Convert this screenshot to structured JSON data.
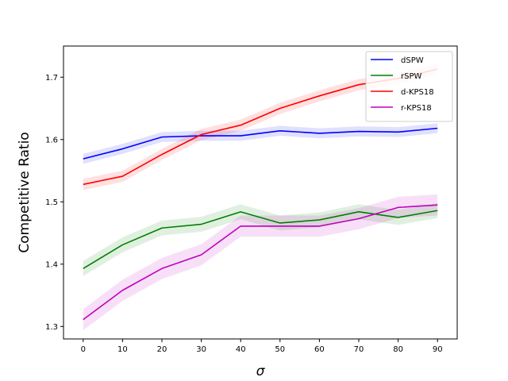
{
  "chart_data": {
    "type": "line",
    "title": "",
    "xlabel": "σ",
    "ylabel": "Competitive Ratio",
    "x": [
      0,
      10,
      20,
      30,
      40,
      50,
      60,
      70,
      80,
      90
    ],
    "xlim": [
      -5,
      95
    ],
    "ylim": [
      1.28,
      1.75
    ],
    "xticks": [
      0,
      10,
      20,
      30,
      40,
      50,
      60,
      70,
      80,
      90
    ],
    "yticks": [
      1.3,
      1.4,
      1.5,
      1.6,
      1.7
    ],
    "grid": false,
    "legend_position": "top-right",
    "series": [
      {
        "name": "dSPW",
        "color": "#0000ff",
        "values": [
          1.569,
          1.585,
          1.604,
          1.606,
          1.606,
          1.614,
          1.61,
          1.613,
          1.612,
          1.618
        ],
        "band": 0.008
      },
      {
        "name": "rSPW",
        "color": "#008000",
        "values": [
          1.393,
          1.431,
          1.458,
          1.464,
          1.484,
          1.466,
          1.471,
          1.484,
          1.475,
          1.486
        ],
        "band": 0.012
      },
      {
        "name": "d-KPS18",
        "color": "#ff0000",
        "values": [
          1.528,
          1.541,
          1.576,
          1.608,
          1.623,
          1.65,
          1.67,
          1.688,
          1.698,
          1.713
        ],
        "band": 0.009
      },
      {
        "name": "r-KPS18",
        "color": "#bf00bf",
        "values": [
          1.311,
          1.358,
          1.393,
          1.415,
          1.461,
          1.461,
          1.461,
          1.473,
          1.491,
          1.495
        ],
        "band": 0.017
      }
    ]
  }
}
